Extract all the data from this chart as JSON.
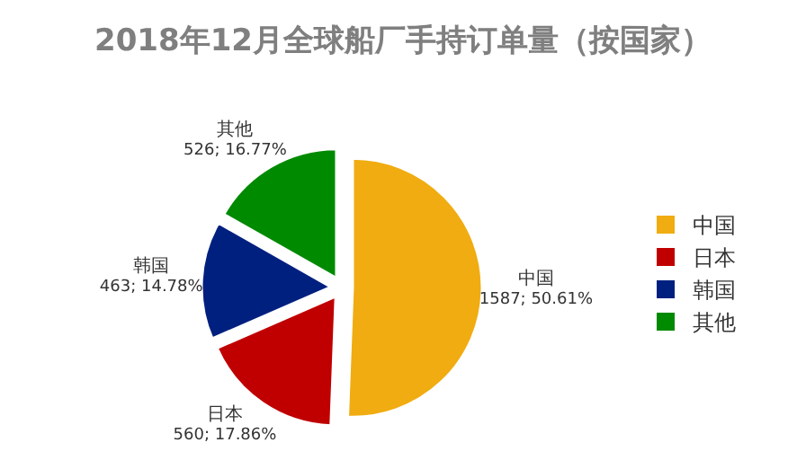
{
  "chart_data": {
    "type": "pie",
    "title": "2018年12月全球船厂手持订单量（按国家）",
    "categories": [
      "中国",
      "日本",
      "韩国",
      "其他"
    ],
    "values": [
      1587,
      560,
      463,
      526
    ],
    "value_labels": [
      "1587; 50.61%",
      "560; 17.86%",
      "463; 14.78%",
      "526; 16.77%"
    ],
    "colors": [
      "#f0ac10",
      "#c00000",
      "#002080",
      "#008a00"
    ],
    "legend": "right"
  }
}
